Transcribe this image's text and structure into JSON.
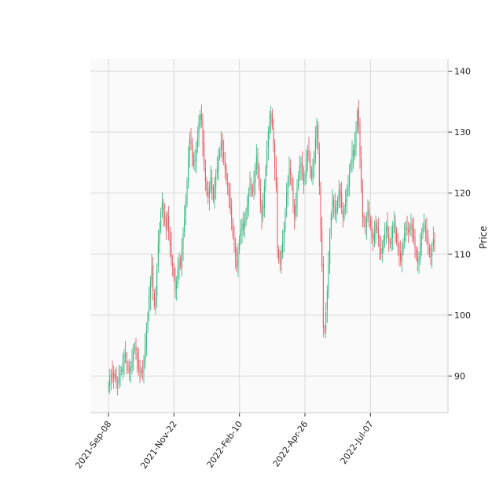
{
  "chart_data": {
    "type": "candlestick",
    "title": "",
    "ylabel": "Price",
    "xlabel": "",
    "ylim": [
      84,
      142
    ],
    "y_ticks": [
      90,
      100,
      110,
      120,
      130,
      140
    ],
    "x_ticks": [
      "2021-Sep-08",
      "2021-Nov-22",
      "2022-Feb-10",
      "2022-Apr-26",
      "2022-Jul-07"
    ],
    "grid": true,
    "y_axis_side": "right",
    "colors": {
      "up": "#2bb37a",
      "down": "#e5515c",
      "background": "#fafafa",
      "grid": "#d9d9d9"
    },
    "trading_days": 250,
    "closes": [
      88.5,
      89.5,
      90.2,
      89.8,
      90.5,
      89.6,
      89.2,
      89.0,
      89.8,
      90.4,
      91.0,
      92.2,
      93.5,
      93.0,
      92.0,
      91.0,
      90.5,
      91.5,
      92.5,
      94.0,
      95.0,
      94.0,
      92.5,
      91.0,
      90.5,
      91.0,
      90.6,
      92.5,
      95.0,
      97.5,
      100.0,
      103.0,
      105.5,
      108.0,
      104.0,
      101.5,
      103.0,
      107.5,
      112.0,
      114.0,
      117.0,
      118.5,
      116.5,
      115.5,
      114.0,
      116.5,
      113.5,
      111.5,
      109.0,
      108.0,
      106.0,
      104.0,
      105.5,
      107.5,
      109.0,
      108.0,
      111.0,
      113.5,
      116.0,
      118.5,
      122.0,
      126.0,
      129.0,
      128.0,
      126.0,
      124.5,
      125.5,
      127.5,
      129.0,
      131.5,
      133.0,
      132.0,
      128.0,
      124.5,
      122.0,
      120.0,
      119.5,
      121.0,
      122.5,
      120.5,
      119.0,
      121.0,
      123.0,
      124.0,
      126.0,
      127.0,
      128.5,
      127.0,
      125.5,
      124.0,
      122.0,
      121.0,
      119.5,
      117.5,
      115.5,
      113.0,
      111.5,
      109.5,
      108.0,
      110.5,
      112.5,
      114.0,
      115.0,
      114.0,
      115.5,
      117.0,
      118.0,
      120.0,
      121.5,
      121.0,
      120.0,
      122.0,
      124.0,
      126.0,
      124.0,
      121.0,
      118.0,
      116.0,
      118.0,
      121.0,
      124.0,
      127.0,
      130.0,
      131.5,
      133.0,
      131.0,
      128.0,
      124.0,
      121.0,
      111.0,
      109.0,
      108.5,
      110.5,
      112.0,
      114.0,
      117.0,
      120.0,
      122.0,
      124.0,
      123.0,
      121.0,
      118.0,
      116.0,
      118.0,
      121.0,
      123.0,
      124.5,
      125.0,
      123.0,
      121.5,
      123.0,
      125.5,
      127.0,
      126.0,
      124.0,
      122.5,
      124.0,
      126.0,
      129.0,
      131.0,
      127.0,
      121.0,
      114.0,
      108.0,
      98.0,
      97.5,
      100.5,
      104.0,
      108.5,
      113.0,
      116.5,
      119.0,
      118.0,
      116.5,
      117.5,
      119.0,
      120.5,
      119.5,
      117.5,
      116.0,
      117.5,
      119.0,
      120.5,
      121.0,
      123.5,
      125.0,
      127.0,
      126.0,
      128.0,
      130.5,
      133.5,
      131.0,
      126.0,
      121.0,
      116.0,
      115.0,
      114.5,
      116.0,
      117.0,
      116.0,
      114.5,
      113.0,
      112.5,
      113.5,
      115.0,
      114.0,
      112.5,
      111.0,
      110.0,
      111.0,
      112.5,
      113.5,
      114.5,
      113.5,
      112.0,
      111.5,
      113.0,
      114.5,
      115.0,
      113.5,
      112.0,
      111.0,
      110.0,
      109.0,
      110.5,
      112.0,
      113.5,
      114.5,
      114.0,
      113.5,
      114.5,
      115.0,
      114.0,
      112.5,
      111.0,
      109.5,
      108.5,
      109.5,
      111.5,
      113.0,
      114.5,
      115.0,
      114.0,
      112.5,
      111.5,
      110.0,
      109.5,
      111.0,
      112.5,
      112.0
    ]
  }
}
